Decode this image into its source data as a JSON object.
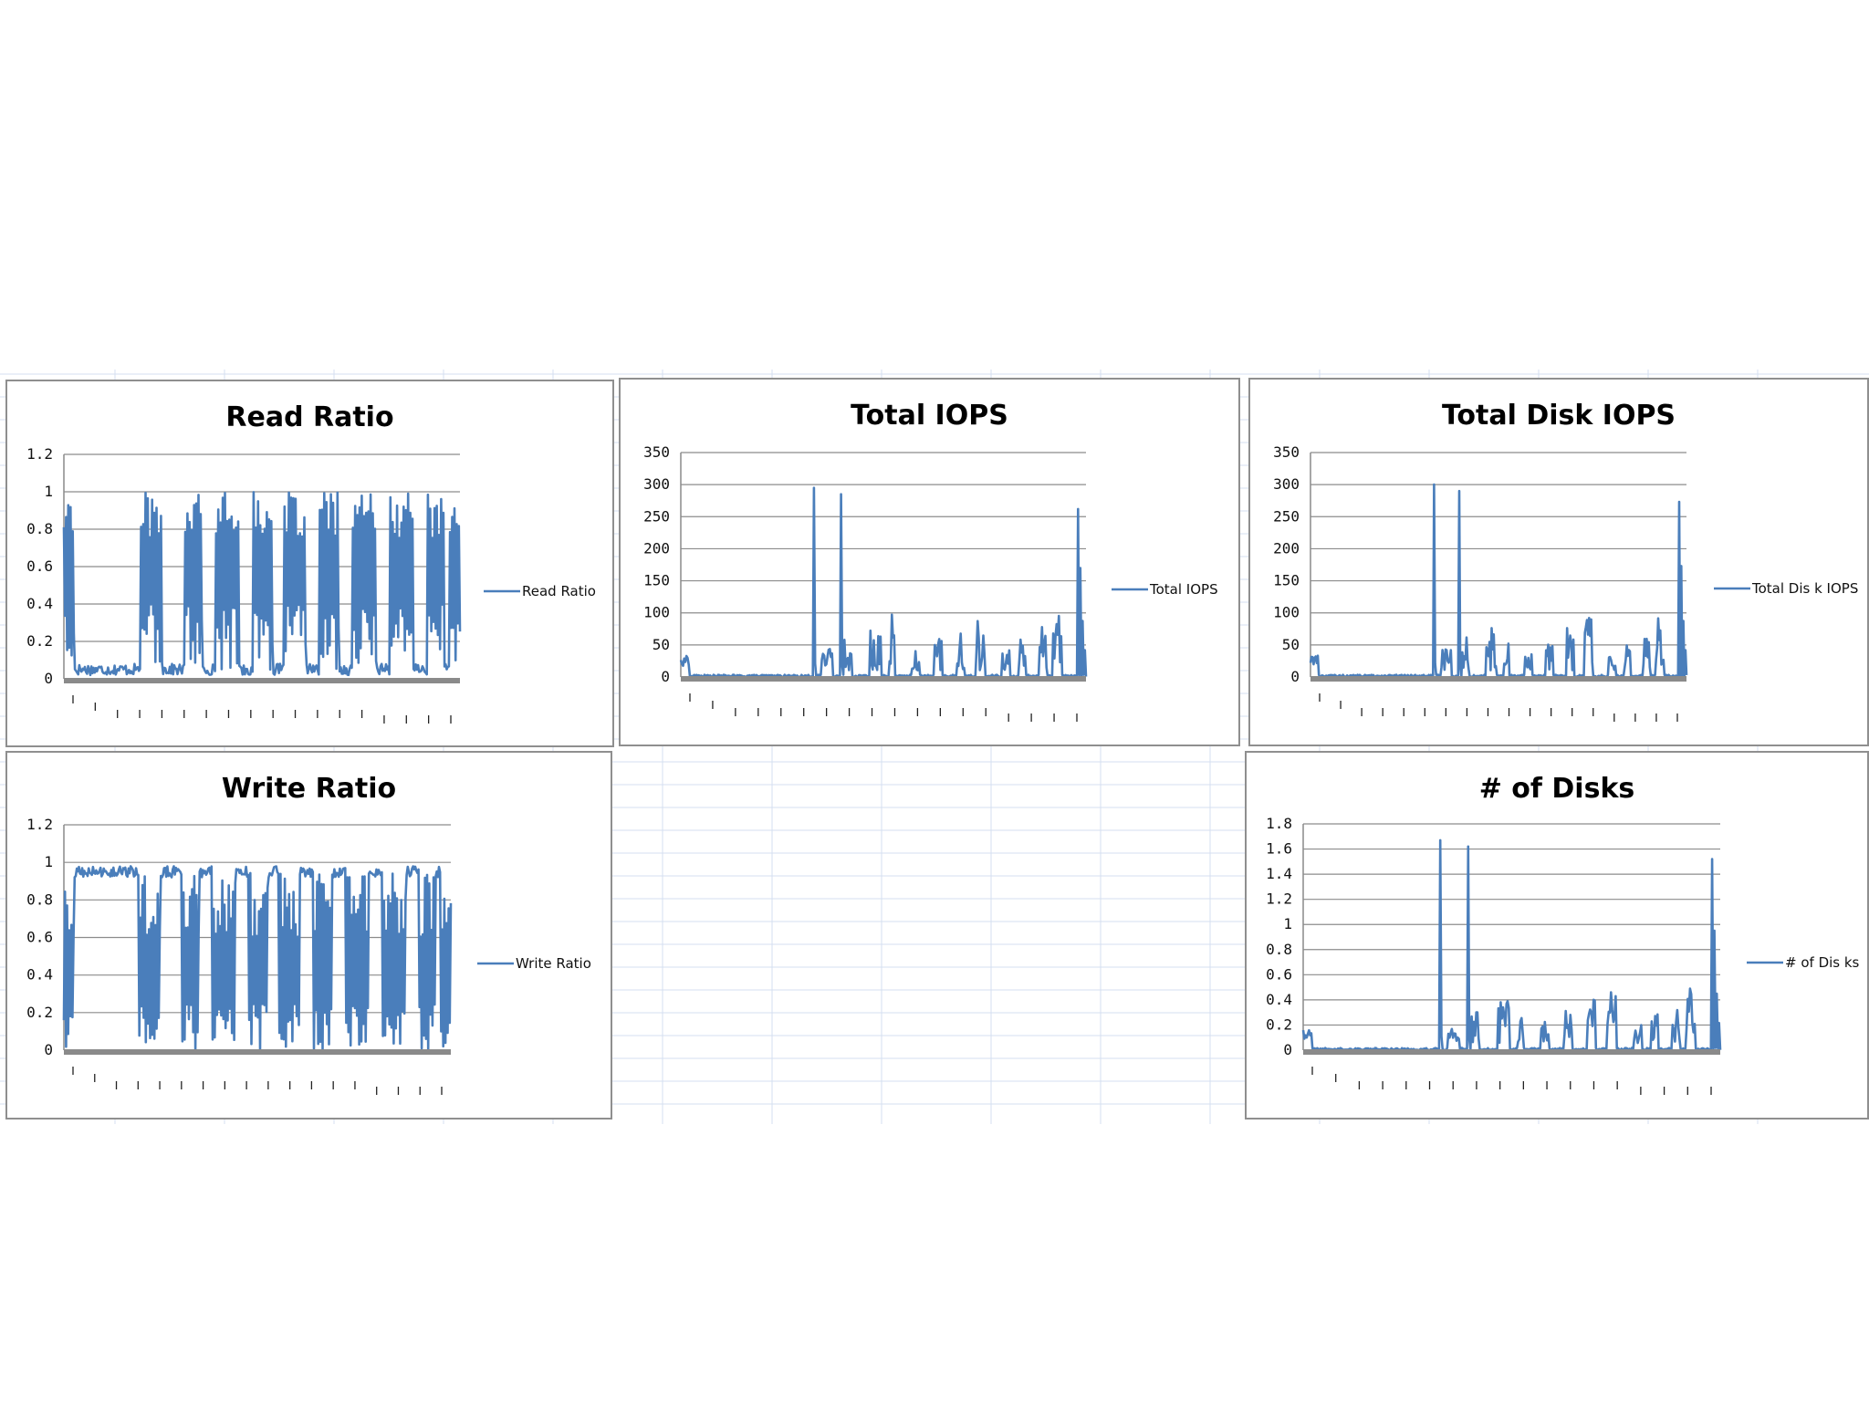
{
  "colors": {
    "series": "#4a7ebb",
    "gridline": "#8c8c8c",
    "axis": "#8a8a8a",
    "sheet_gridline": "#d4dff0"
  },
  "chart_data": [
    {
      "id": "read-ratio",
      "type": "line",
      "title": "Read Ratio",
      "series": [
        {
          "name": "Read Ratio"
        }
      ],
      "ylim": [
        0,
        1.2
      ],
      "yticks": [
        "1.2",
        "1",
        "0.8",
        "0.6",
        "0.4",
        "0.2",
        "0"
      ],
      "grid": true,
      "legend": "right",
      "pattern": "ratio_low",
      "note": "x tick labels are illegible in the original"
    },
    {
      "id": "total-iops",
      "type": "line",
      "title": "Total IOPS",
      "series": [
        {
          "name": "Total IOPS"
        }
      ],
      "ylim": [
        0,
        350
      ],
      "yticks": [
        "350",
        "300",
        "250",
        "200",
        "150",
        "100",
        "50",
        "0"
      ],
      "grid": true,
      "legend": "right",
      "pattern": "spikes",
      "peaks": [
        295,
        285,
        262,
        170
      ]
    },
    {
      "id": "total-disk-iops",
      "type": "line",
      "title": "Total Disk IOPS",
      "series": [
        {
          "name": "Total Dis k IOPS"
        }
      ],
      "ylim": [
        0,
        350
      ],
      "yticks": [
        "350",
        "300",
        "250",
        "200",
        "150",
        "100",
        "50",
        "0"
      ],
      "grid": true,
      "legend": "right",
      "pattern": "spikes",
      "peaks": [
        300,
        290,
        273,
        173
      ]
    },
    {
      "id": "write-ratio",
      "type": "line",
      "title": "Write Ratio",
      "series": [
        {
          "name": "Write Ratio"
        }
      ],
      "ylim": [
        0,
        1.2
      ],
      "yticks": [
        "1.2",
        "1",
        "0.8",
        "0.6",
        "0.4",
        "0.2",
        "0"
      ],
      "grid": true,
      "legend": "right",
      "pattern": "ratio_high"
    },
    {
      "id": "num-disks",
      "type": "line",
      "title": "# of Disks",
      "series": [
        {
          "name": "# of Dis ks"
        }
      ],
      "ylim": [
        0,
        1.8
      ],
      "yticks": [
        "1.8",
        "1.6",
        "1.4",
        "1.2",
        "1",
        "0.8",
        "0.6",
        "0.4",
        "0.2",
        "0"
      ],
      "grid": true,
      "legend": "right",
      "pattern": "spikes",
      "peaks": [
        1.67,
        1.62,
        1.52,
        0.95
      ]
    }
  ]
}
